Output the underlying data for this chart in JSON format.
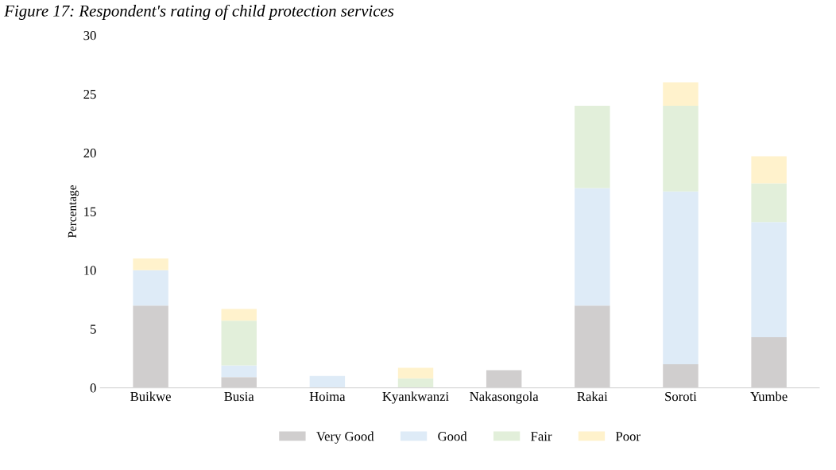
{
  "chart_data": {
    "type": "bar",
    "title": "Figure 17: Respondent's rating of child protection services",
    "ylabel": "Percentage",
    "categories": [
      "Buikwe",
      "Busia",
      "Hoima",
      "Kyankwanzi",
      "Nakasongola",
      "Rakai",
      "Soroti",
      "Yumbe"
    ],
    "stacked": true,
    "series": [
      {
        "name": "Very Good",
        "color": "#d0cece",
        "values": [
          7,
          0.9,
          0,
          0,
          1.5,
          7,
          2,
          4.3
        ]
      },
      {
        "name": "Good",
        "color": "#deebf7",
        "values": [
          3,
          1,
          1,
          0,
          0,
          10,
          14.7,
          9.8
        ]
      },
      {
        "name": "Fair",
        "color": "#e2efda",
        "values": [
          0,
          3.8,
          0,
          0.8,
          0,
          7,
          7.3,
          3.3
        ]
      },
      {
        "name": "Poor",
        "color": "#fff2cc",
        "values": [
          1,
          1,
          0,
          0.9,
          0,
          0,
          2,
          2.3
        ]
      }
    ],
    "ylim": [
      0,
      30
    ],
    "yticks": [
      0,
      5,
      10,
      15,
      20,
      25,
      30
    ],
    "grid": false,
    "legend": "bottom"
  }
}
